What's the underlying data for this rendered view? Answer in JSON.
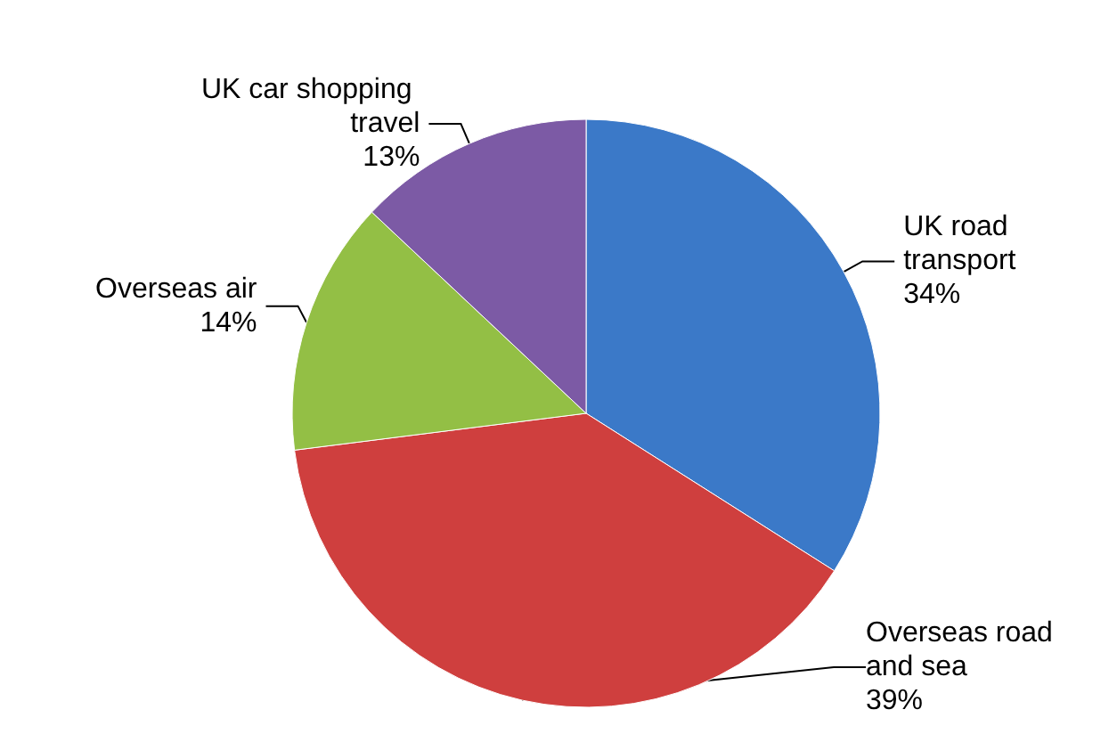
{
  "chart_data": {
    "type": "pie",
    "categories": [
      "UK road transport",
      "Overseas road and sea",
      "Overseas air",
      "UK car shopping travel"
    ],
    "values": [
      34,
      39,
      14,
      13
    ],
    "colors": [
      "#3b79c8",
      "#cf3f3e",
      "#93bf45",
      "#7c5aa5"
    ],
    "value_labels": [
      "34%",
      "39%",
      "14%",
      "13%"
    ],
    "legend": false
  }
}
